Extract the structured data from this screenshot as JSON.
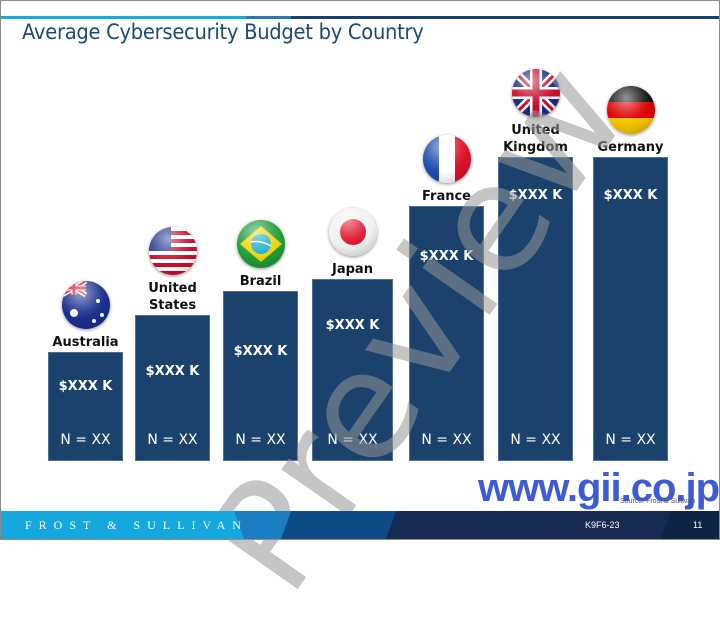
{
  "slide": {
    "title": "Average Cybersecurity Budget by Country",
    "source": "Source: Frost & Sullivan",
    "watermark": "Preview",
    "site_watermark": "www.gii.co.jp",
    "footer": {
      "brand": "FROST & SULLIVAN",
      "code": "K9F6-23",
      "page": "11"
    },
    "colors": {
      "bar": "#1a426c",
      "title": "#1b4a78",
      "accent_light": "#14a8df",
      "footer_navy": "#162a52"
    }
  },
  "chart_data": {
    "type": "bar",
    "title": "Average Cybersecurity Budget by Country",
    "xlabel": "",
    "ylabel": "",
    "value_units": "relative bar height (illustrative; actual values masked)",
    "categories": [
      "Australia",
      "United States",
      "Brazil",
      "Japan",
      "France",
      "United Kingdom",
      "Germany"
    ],
    "category_labels": [
      [
        "Australia"
      ],
      [
        "United",
        "States"
      ],
      [
        "Brazil"
      ],
      [
        "Japan"
      ],
      [
        "France"
      ],
      [
        "United",
        "Kingdom"
      ],
      [
        "Germany"
      ]
    ],
    "flags": [
      "australia-flag",
      "us-flag",
      "brazil-flag",
      "japan-flag",
      "france-flag",
      "uk-flag",
      "germany-flag"
    ],
    "values": [
      36,
      48,
      56,
      60,
      84,
      100,
      100
    ],
    "ylim": [
      0,
      100
    ],
    "data_labels": [
      "$XXX K",
      "$XXX K",
      "$XXX K",
      "$XXX K",
      "$XXX K",
      "$XXX K",
      "$XXX K"
    ],
    "sample_labels": [
      "N = XX",
      "N = XX",
      "N = XX",
      "N = XX",
      "N = XX",
      "N = XX",
      "N = XX"
    ],
    "grid": false,
    "legend": "none"
  }
}
